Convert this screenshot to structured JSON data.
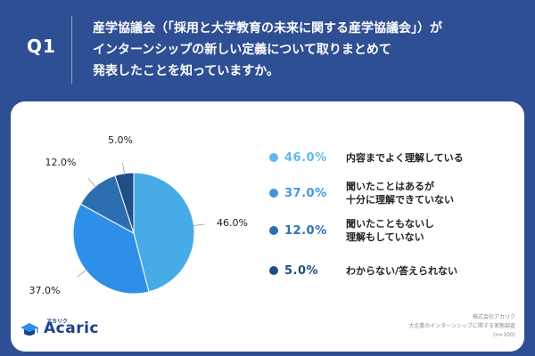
{
  "header": {
    "q_label": "Q1",
    "question_lines": [
      "産学協議会（「採用と大学教育の未来に関する産学協議会」）が",
      "インターンシップの新しい定義について取りまとめて",
      "発表したことを知っていますか。"
    ]
  },
  "chart_data": {
    "type": "pie",
    "start_angle_deg": 0,
    "direction": "clockwise",
    "categories": [
      "内容までよく理解している",
      "聞いたことはあるが十分に理解できていない",
      "聞いたこともないし理解もしていない",
      "わからない/答えられない"
    ],
    "values": [
      46.0,
      37.0,
      12.0,
      5.0
    ],
    "slice_labels": [
      "46.0%",
      "37.0%",
      "12.0%",
      "5.0%"
    ],
    "colors": [
      "#47abe8",
      "#2e8fe8",
      "#2c6fb0",
      "#1f4e86"
    ],
    "legend_position": "right"
  },
  "legend": [
    {
      "pct": "46.0%",
      "lines": [
        "内容までよく理解している"
      ],
      "color": "#5fb8ec"
    },
    {
      "pct": "37.0%",
      "lines": [
        "聞いたことはあるが",
        "十分に理解できていない"
      ],
      "color": "#3d97e6"
    },
    {
      "pct": "12.0%",
      "lines": [
        "聞いたこともないし",
        "理解もしていない"
      ],
      "color": "#2c6fb0"
    },
    {
      "pct": "5.0%",
      "lines": [
        "わからない/答えられない"
      ],
      "color": "#1f4e86"
    }
  ],
  "logo": {
    "name": "Acaric",
    "ruby": "アカリク"
  },
  "footer": {
    "lines": [
      "株式会社アカリク",
      "大企業のインターンシップに関する実態調査",
      "(n=100)"
    ]
  }
}
